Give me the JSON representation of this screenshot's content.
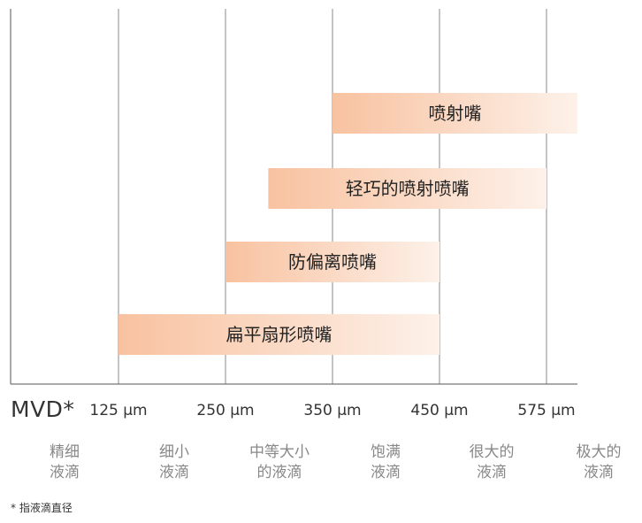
{
  "chart_data": {
    "type": "bar",
    "orientation": "horizontal-range",
    "xlabel": "MVD*",
    "ticks": [
      {
        "value": 125,
        "label": "125 µm"
      },
      {
        "value": 250,
        "label": "250 µm"
      },
      {
        "value": 350,
        "label": "350 µm"
      },
      {
        "value": 450,
        "label": "450 µm"
      },
      {
        "value": 575,
        "label": "575 µm"
      }
    ],
    "categories": [
      {
        "lines": [
          "精细",
          "液滴"
        ]
      },
      {
        "lines": [
          "细小",
          "液滴"
        ]
      },
      {
        "lines": [
          "中等大小",
          "的液滴"
        ]
      },
      {
        "lines": [
          "饱满",
          "液滴"
        ]
      },
      {
        "lines": [
          "很大的",
          "液滴"
        ]
      },
      {
        "lines": [
          "极大的",
          "液滴"
        ]
      }
    ],
    "bars": [
      {
        "label": "喷射嘴",
        "start": 350,
        "end": 600
      },
      {
        "label": "轻巧的喷射喷嘴",
        "start": 290,
        "end": 575
      },
      {
        "label": "防偏离喷嘴",
        "start": 250,
        "end": 450
      },
      {
        "label": "扁平扇形喷嘴",
        "start": 125,
        "end": 450
      }
    ],
    "colors": {
      "bar_start": "#f8c2a0",
      "bar_end": "#fdf1e9",
      "grid": "#8a8a8a",
      "axis": "#555555",
      "category_text": "#888888"
    }
  },
  "footnote": "* 指液滴直径"
}
